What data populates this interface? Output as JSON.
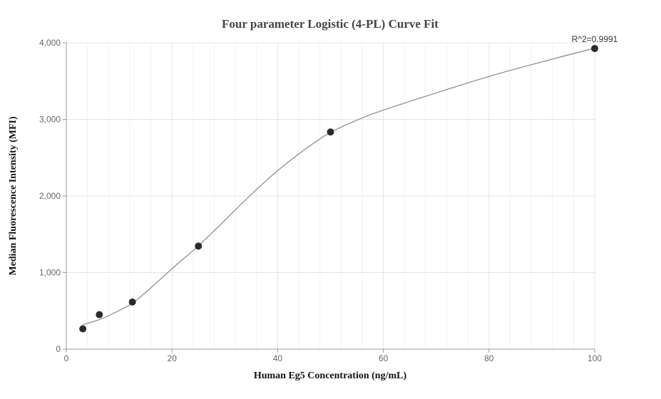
{
  "chart_data": {
    "type": "scatter",
    "title": "Four parameter Logistic (4-PL) Curve Fit",
    "xlabel": "Human Eg5 Concentration (ng/mL)",
    "ylabel": "Median Fluorescence Intensity (MFI)",
    "xlim": [
      0,
      100
    ],
    "ylim": [
      0,
      4000
    ],
    "x_ticks": [
      0,
      20,
      40,
      60,
      80,
      100
    ],
    "y_ticks": [
      0,
      1000,
      2000,
      3000,
      4000
    ],
    "x_tick_labels": [
      "0",
      "20",
      "40",
      "60",
      "80",
      "100"
    ],
    "y_tick_labels": [
      "0",
      "1,000",
      "2,000",
      "3,000",
      "4,000"
    ],
    "grid": true,
    "series": [
      {
        "points": [
          {
            "x": 3.125,
            "y": 265
          },
          {
            "x": 6.25,
            "y": 450
          },
          {
            "x": 12.5,
            "y": 615
          },
          {
            "x": 25,
            "y": 1345
          },
          {
            "x": 50,
            "y": 2835
          },
          {
            "x": 100,
            "y": 3925
          }
        ]
      }
    ],
    "fit_curve": [
      {
        "x": 3.125,
        "y": 320
      },
      {
        "x": 6.25,
        "y": 385
      },
      {
        "x": 9,
        "y": 470
      },
      {
        "x": 12.5,
        "y": 600
      },
      {
        "x": 16,
        "y": 800
      },
      {
        "x": 20,
        "y": 1050
      },
      {
        "x": 25,
        "y": 1350
      },
      {
        "x": 30,
        "y": 1680
      },
      {
        "x": 35,
        "y": 2020
      },
      {
        "x": 40,
        "y": 2330
      },
      {
        "x": 45,
        "y": 2600
      },
      {
        "x": 50,
        "y": 2830
      },
      {
        "x": 55,
        "y": 2990
      },
      {
        "x": 60,
        "y": 3120
      },
      {
        "x": 70,
        "y": 3345
      },
      {
        "x": 80,
        "y": 3560
      },
      {
        "x": 90,
        "y": 3750
      },
      {
        "x": 100,
        "y": 3930
      }
    ],
    "annotation": "R^2=0.9991",
    "colors": {
      "point": "#2b2b2b",
      "curve": "#888888"
    }
  }
}
